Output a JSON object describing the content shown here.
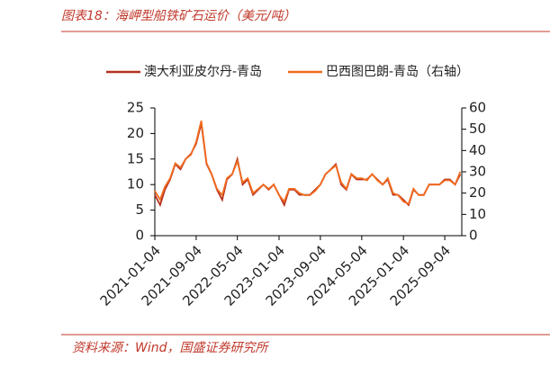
{
  "chart_data": {
    "type": "line",
    "title": "图表18：海岬型船铁矿石运价（美元/吨）",
    "source": "资料来源：Wind，国盛证券研究所",
    "x": [
      "2021-01-04",
      "2021-02-04",
      "2021-03-04",
      "2021-04-04",
      "2021-05-04",
      "2021-06-04",
      "2021-07-04",
      "2021-08-04",
      "2021-09-04",
      "2021-10-04",
      "2021-11-04",
      "2021-12-04",
      "2022-01-04",
      "2022-02-04",
      "2022-03-04",
      "2022-04-04",
      "2022-05-04",
      "2022-06-04",
      "2022-07-04",
      "2022-08-04",
      "2022-09-04",
      "2022-10-04",
      "2022-11-04",
      "2022-12-04",
      "2023-01-04",
      "2023-02-04",
      "2023-03-04",
      "2023-04-04",
      "2023-05-04",
      "2023-06-04",
      "2023-07-04",
      "2023-08-04",
      "2023-09-04",
      "2023-10-04",
      "2023-11-04",
      "2023-12-04",
      "2024-01-04",
      "2024-02-04",
      "2024-03-04",
      "2024-04-04",
      "2024-05-04",
      "2024-06-04",
      "2024-07-04",
      "2024-08-04",
      "2024-09-04",
      "2024-10-04",
      "2024-11-04",
      "2024-12-04",
      "2025-01-04",
      "2025-02-04",
      "2025-03-04",
      "2025-04-04",
      "2025-05-04",
      "2025-06-04",
      "2025-07-04",
      "2025-08-04",
      "2025-09-04",
      "2025-10-04",
      "2025-11-04",
      "2025-12-04"
    ],
    "series": [
      {
        "name": "澳大利亚皮尔丹-青岛",
        "color": "#b5301f",
        "axis": "y",
        "values": [
          8,
          6,
          9,
          11,
          14,
          13,
          15,
          16,
          18,
          22,
          14,
          12,
          9,
          7,
          11,
          12,
          15,
          10,
          11,
          8,
          9,
          10,
          9,
          10,
          8,
          6,
          9,
          9,
          8,
          8,
          8,
          9,
          10,
          12,
          13,
          14,
          10,
          9,
          12,
          11,
          11,
          11,
          12,
          11,
          10,
          11,
          8,
          8,
          7,
          6,
          9,
          8,
          8,
          10,
          10,
          10,
          11,
          11,
          10,
          12
        ]
      },
      {
        "name": "巴西图巴朗-青岛（右轴）",
        "color": "#f26b1d",
        "axis": "y2",
        "values": [
          21,
          17,
          23,
          27,
          34,
          32,
          36,
          38,
          44,
          54,
          34,
          29,
          22,
          19,
          27,
          29,
          35,
          25,
          27,
          20,
          22,
          24,
          22,
          24,
          19,
          16,
          22,
          22,
          20,
          19,
          19,
          21,
          24,
          29,
          31,
          33,
          25,
          22,
          29,
          27,
          27,
          26,
          29,
          26,
          24,
          27,
          20,
          19,
          16,
          15,
          22,
          19,
          19,
          24,
          24,
          24,
          26,
          26,
          24,
          30
        ]
      }
    ],
    "xlim": [
      "2021-01-04",
      "2025-12-13"
    ],
    "xticks": [
      "2021-01-04",
      "2021-09-04",
      "2022-05-04",
      "2023-01-04",
      "2023-09-04",
      "2024-05-04",
      "2025-01-04",
      "2025-09-04"
    ],
    "ylim": [
      0,
      25
    ],
    "yticks": [
      0,
      5,
      10,
      15,
      20,
      25
    ],
    "y2lim": [
      0,
      60
    ],
    "y2ticks": [
      0,
      10,
      20,
      30,
      40,
      50,
      60
    ]
  }
}
